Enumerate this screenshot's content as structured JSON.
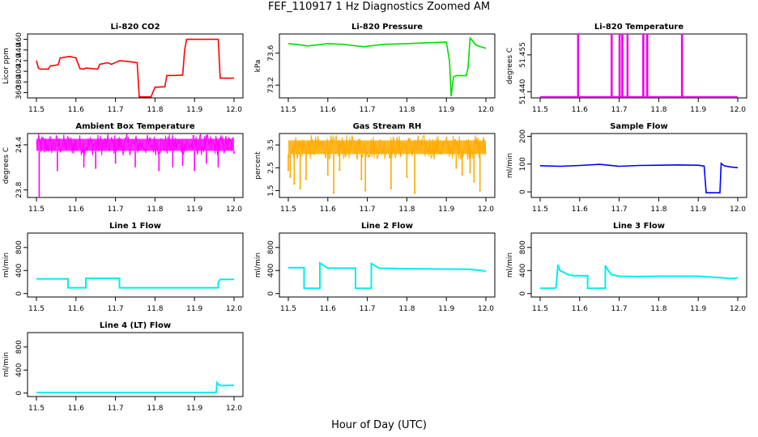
{
  "figure": {
    "title": "FEF_110917  1 Hz Diagnostics Zoomed AM",
    "xlabel": "Hour of Day (UTC)"
  },
  "chart_data": [
    {
      "type": "line",
      "title": "Li-820 CO2",
      "xlabel": "",
      "ylabel": "Licor ppm",
      "color": "#ff0000",
      "xlim": [
        11.5,
        12.0
      ],
      "ylim": [
        350,
        470
      ],
      "xticks": [
        "11.5",
        "11.6",
        "11.7",
        "11.8",
        "11.9",
        "12.0"
      ],
      "yticks": [
        {
          "v": 360,
          "label": "360"
        },
        {
          "v": 380,
          "label": "380"
        },
        {
          "v": 400,
          "label": "400"
        },
        {
          "v": 420,
          "label": "420"
        },
        {
          "v": 440,
          "label": "440"
        },
        {
          "v": 460,
          "label": "460"
        }
      ],
      "series": [
        {
          "x": [
            11.5,
            11.505,
            11.51,
            11.53,
            11.535,
            11.555,
            11.56,
            11.585,
            11.595,
            11.6,
            11.61,
            11.62,
            11.625,
            11.655,
            11.66,
            11.68,
            11.69,
            11.705,
            11.71,
            11.735,
            11.755,
            11.76,
            11.79,
            11.8,
            11.825,
            11.83,
            11.85,
            11.87,
            11.875,
            11.88,
            11.96,
            11.965,
            12.0
          ],
          "values": [
            420,
            406,
            404,
            404,
            410,
            412,
            425,
            428,
            426,
            425,
            405,
            404,
            406,
            404,
            413,
            416,
            413,
            418,
            420,
            418,
            416,
            352,
            352,
            370,
            371,
            392,
            392,
            393,
            440,
            460,
            460,
            387,
            387
          ]
        }
      ]
    },
    {
      "type": "line",
      "title": "Li-820 Pressure",
      "xlabel": "",
      "ylabel": "kPa",
      "color": "#00dd00",
      "xlim": [
        11.5,
        12.0
      ],
      "ylim": [
        73.04,
        73.84
      ],
      "xticks": [
        "11.5",
        "11.6",
        "11.7",
        "11.8",
        "11.9",
        "12.0"
      ],
      "yticks": [
        {
          "v": 73.2,
          "label": "73.2"
        },
        {
          "v": 73.6,
          "label": "73.6"
        }
      ],
      "series": [
        {
          "x": [
            11.5,
            11.52,
            11.55,
            11.6,
            11.64,
            11.69,
            11.74,
            11.8,
            11.85,
            11.9,
            11.908,
            11.912,
            11.918,
            11.925,
            11.95,
            11.955,
            11.96,
            11.975,
            12.0
          ],
          "values": [
            73.72,
            73.71,
            73.69,
            73.72,
            73.71,
            73.68,
            73.71,
            73.72,
            73.73,
            73.74,
            73.5,
            73.06,
            73.3,
            73.32,
            73.32,
            73.42,
            73.79,
            73.7,
            73.66
          ]
        }
      ]
    },
    {
      "type": "line",
      "title": "Li-820 Temperature",
      "xlabel": "",
      "ylabel": "degrees C",
      "color": "#ee00ee",
      "xlim": [
        11.5,
        12.0
      ],
      "ylim": [
        51.4375,
        51.4635
      ],
      "xticks": [
        "11.5",
        "11.6",
        "11.7",
        "11.8",
        "11.9",
        "12.0"
      ],
      "yticks": [
        {
          "v": 51.44,
          "label": "51.440"
        },
        {
          "v": 51.455,
          "label": "51.455"
        }
      ],
      "series": [
        {
          "x": [
            11.5,
            11.595,
            11.595,
            11.597,
            11.597,
            11.68,
            11.68,
            11.682,
            11.682,
            11.7,
            11.7,
            11.702,
            11.702,
            11.707,
            11.707,
            11.709,
            11.709,
            11.72,
            11.72,
            11.722,
            11.722,
            11.76,
            11.76,
            11.762,
            11.762,
            11.77,
            11.77,
            11.772,
            11.772,
            11.858,
            11.858,
            11.86,
            11.86,
            12.0
          ],
          "values": [
            51.438,
            51.438,
            51.4635,
            51.4635,
            51.438,
            51.438,
            51.4635,
            51.4635,
            51.438,
            51.438,
            51.4635,
            51.4635,
            51.438,
            51.438,
            51.4635,
            51.4635,
            51.438,
            51.438,
            51.4635,
            51.4635,
            51.438,
            51.438,
            51.4635,
            51.4635,
            51.438,
            51.438,
            51.4635,
            51.4635,
            51.438,
            51.438,
            51.4635,
            51.4635,
            51.438,
            51.438
          ]
        }
      ]
    },
    {
      "type": "line",
      "title": "Ambient Box Temperature",
      "xlabel": "",
      "ylabel": "degrees C",
      "color": "#ff00ff",
      "xlim": [
        11.5,
        12.0
      ],
      "ylim": [
        23.7,
        24.55
      ],
      "xticks": [
        "11.5",
        "11.6",
        "11.7",
        "11.8",
        "11.9",
        "12.0"
      ],
      "yticks": [
        {
          "v": 23.8,
          "label": "23.8"
        },
        {
          "v": 24.4,
          "label": "24.4"
        }
      ],
      "band": [
        24.32,
        24.48
      ],
      "series": [
        {
          "x": [
            11.5,
            11.507,
            11.52,
            11.553,
            11.62,
            11.65,
            11.7,
            11.75,
            11.81,
            11.845,
            11.87,
            11.9,
            11.93,
            11.96,
            12.0
          ],
          "values": [
            24.4,
            23.7,
            24.3,
            24.05,
            24.1,
            24.08,
            24.15,
            24.1,
            24.05,
            24.1,
            24.12,
            24.05,
            24.15,
            24.1,
            24.28
          ]
        }
      ]
    },
    {
      "type": "scatter",
      "title": "Gas Stream RH",
      "xlabel": "",
      "ylabel": "percent",
      "color": "#ffaa00",
      "xlim": [
        11.5,
        12.0
      ],
      "ylim": [
        1.2,
        4.0
      ],
      "xticks": [
        "11.5",
        "11.6",
        "11.7",
        "11.8",
        "11.9",
        "12.0"
      ],
      "yticks": [
        {
          "v": 1.5,
          "label": "1.5"
        },
        {
          "v": 2.5,
          "label": "2.5"
        },
        {
          "v": 3.5,
          "label": "3.5"
        }
      ],
      "band": [
        3.1,
        3.7
      ],
      "series": [
        {
          "x": [
            11.5,
            11.505,
            11.515,
            11.53,
            11.545,
            11.6,
            11.615,
            11.63,
            11.685,
            11.695,
            11.76,
            11.8,
            11.82,
            11.925,
            11.94,
            11.96,
            11.97,
            11.985
          ],
          "values": [
            2.4,
            2.1,
            1.8,
            1.6,
            2.0,
            2.2,
            1.4,
            2.4,
            2.0,
            1.5,
            1.6,
            2.1,
            1.4,
            2.5,
            2.2,
            2.3,
            1.9,
            1.5
          ]
        }
      ]
    },
    {
      "type": "line",
      "title": "Sample Flow",
      "xlabel": "",
      "ylabel": "ml/min",
      "color": "#0000ff",
      "xlim": [
        11.5,
        12.0
      ],
      "ylim": [
        -20,
        210
      ],
      "xticks": [
        "11.5",
        "11.6",
        "11.7",
        "11.8",
        "11.9",
        "12.0"
      ],
      "yticks": [
        {
          "v": 0,
          "label": "0"
        },
        {
          "v": 100,
          "label": "100"
        },
        {
          "v": 200,
          "label": "200"
        }
      ],
      "series": [
        {
          "x": [
            11.5,
            11.55,
            11.6,
            11.65,
            11.7,
            11.75,
            11.8,
            11.85,
            11.9,
            11.915,
            11.92,
            11.955,
            11.958,
            11.965,
            11.98,
            12.0
          ],
          "values": [
            94,
            92,
            95,
            99,
            92,
            95,
            96,
            97,
            96,
            93,
            -3,
            -3,
            103,
            94,
            90,
            87
          ]
        }
      ]
    },
    {
      "type": "line",
      "title": "Line 1 Flow",
      "xlabel": "",
      "ylabel": "ml/min",
      "color": "#00eeee",
      "xlim": [
        11.5,
        12.0
      ],
      "ylim": [
        -60,
        1050
      ],
      "xticks": [
        "11.5",
        "11.6",
        "11.7",
        "11.8",
        "11.9",
        "12.0"
      ],
      "yticks": [
        {
          "v": 0,
          "label": "0"
        },
        {
          "v": 400,
          "label": "400"
        },
        {
          "v": 800,
          "label": "800"
        }
      ],
      "series": [
        {
          "x": [
            11.5,
            11.58,
            11.58,
            11.625,
            11.625,
            11.71,
            11.71,
            11.96,
            11.96,
            11.965,
            12.0
          ],
          "values": [
            255,
            255,
            100,
            100,
            265,
            265,
            100,
            100,
            190,
            245,
            245
          ]
        }
      ]
    },
    {
      "type": "line",
      "title": "Line 2 Flow",
      "xlabel": "",
      "ylabel": "ml/min",
      "color": "#00eeee",
      "xlim": [
        11.5,
        12.0
      ],
      "ylim": [
        -60,
        1050
      ],
      "xticks": [
        "11.5",
        "11.6",
        "11.7",
        "11.8",
        "11.9",
        "12.0"
      ],
      "yticks": [
        {
          "v": 0,
          "label": "0"
        },
        {
          "v": 400,
          "label": "400"
        },
        {
          "v": 800,
          "label": "800"
        }
      ],
      "series": [
        {
          "x": [
            11.5,
            11.54,
            11.54,
            11.58,
            11.58,
            11.6,
            11.67,
            11.67,
            11.71,
            11.71,
            11.73,
            11.8,
            11.9,
            11.96,
            12.0
          ],
          "values": [
            450,
            450,
            90,
            90,
            530,
            440,
            440,
            90,
            90,
            520,
            440,
            430,
            425,
            420,
            390
          ]
        }
      ]
    },
    {
      "type": "line",
      "title": "Line 3 Flow",
      "xlabel": "",
      "ylabel": "ml/min",
      "color": "#00eeee",
      "xlim": [
        11.5,
        12.0
      ],
      "ylim": [
        -60,
        1050
      ],
      "xticks": [
        "11.5",
        "11.6",
        "11.7",
        "11.8",
        "11.9",
        "12.0"
      ],
      "yticks": [
        {
          "v": 0,
          "label": "0"
        },
        {
          "v": 400,
          "label": "400"
        },
        {
          "v": 800,
          "label": "800"
        }
      ],
      "series": [
        {
          "x": [
            11.5,
            11.54,
            11.54,
            11.545,
            11.55,
            11.57,
            11.585,
            11.62,
            11.62,
            11.665,
            11.665,
            11.67,
            11.68,
            11.7,
            11.75,
            11.8,
            11.9,
            11.96,
            11.98,
            12.0
          ],
          "values": [
            90,
            95,
            90,
            500,
            400,
            330,
            310,
            310,
            90,
            90,
            490,
            420,
            330,
            300,
            295,
            300,
            300,
            275,
            260,
            270
          ]
        }
      ]
    },
    {
      "type": "line",
      "title": "Line 4 (LT) Flow",
      "xlabel": "",
      "ylabel": "ml/min",
      "color": "#00eeee",
      "xlim": [
        11.5,
        12.0
      ],
      "ylim": [
        -60,
        1050
      ],
      "xticks": [
        "11.5",
        "11.6",
        "11.7",
        "11.8",
        "11.9",
        "12.0"
      ],
      "yticks": [
        {
          "v": 0,
          "label": "0"
        },
        {
          "v": 400,
          "label": "400"
        },
        {
          "v": 800,
          "label": "800"
        }
      ],
      "series": [
        {
          "x": [
            11.5,
            11.955,
            11.957,
            11.962,
            11.97,
            12.0
          ],
          "values": [
            10,
            10,
            180,
            140,
            130,
            135
          ]
        }
      ]
    }
  ]
}
